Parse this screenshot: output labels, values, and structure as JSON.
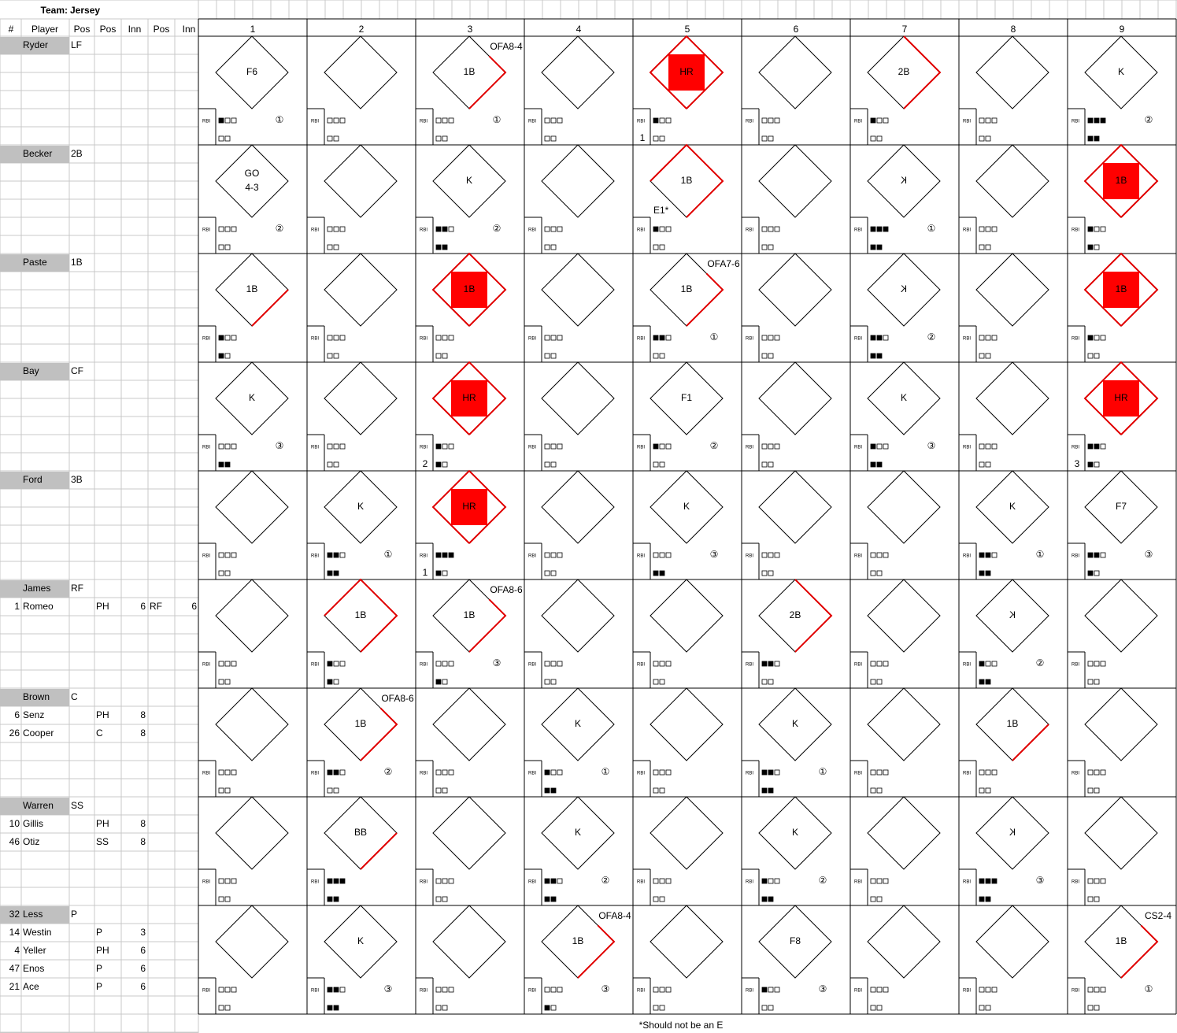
{
  "header": {
    "team_label": "Team:",
    "team": "Jersey"
  },
  "columns": [
    "#",
    "Player",
    "Pos",
    "Pos",
    "Inn",
    "Pos",
    "Inn"
  ],
  "innings": [
    "1",
    "2",
    "3",
    "4",
    "5",
    "6",
    "7",
    "8",
    "9"
  ],
  "rbi_label": "RBI",
  "footnote": "*Should not be an E",
  "rows": [
    {
      "players": [
        {
          "name": "Ryder",
          "pos": "LF"
        }
      ],
      "cells": [
        {
          "result": "F6",
          "balls": 1,
          "strikes": 0,
          "out": "①"
        },
        {
          "balls": 0,
          "strikes": 0
        },
        {
          "result": "1B",
          "edges": 1,
          "thrown_out": true,
          "note": "OFA8-4",
          "balls": 0,
          "strikes": 0,
          "out": "①"
        },
        {
          "balls": 0,
          "strikes": 0
        },
        {
          "result": "HR",
          "edges": 4,
          "scored": true,
          "balls": 1,
          "strikes": 0,
          "rbi": 1
        },
        {
          "balls": 0,
          "strikes": 0
        },
        {
          "result": "2B",
          "edges": 2,
          "balls": 1,
          "strikes": 0
        },
        {
          "balls": 0,
          "strikes": 0
        },
        {
          "result": "K",
          "balls": 3,
          "strikes": 2,
          "out": "②"
        }
      ]
    },
    {
      "players": [
        {
          "name": "Becker",
          "pos": "2B"
        }
      ],
      "cells": [
        {
          "result": [
            "GO",
            "4-3"
          ],
          "balls": 0,
          "strikes": 0,
          "out": "②"
        },
        {
          "balls": 0,
          "strikes": 0
        },
        {
          "result": "K",
          "balls": 2,
          "strikes": 2,
          "out": "②"
        },
        {
          "balls": 0,
          "strikes": 0
        },
        {
          "result": "1B",
          "edges": 3,
          "error": "E1*",
          "balls": 1,
          "strikes": 0
        },
        {
          "balls": 0,
          "strikes": 0
        },
        {
          "result": "K",
          "mirrored": true,
          "balls": 3,
          "strikes": 2,
          "out": "①"
        },
        {
          "balls": 0,
          "strikes": 0
        },
        {
          "result": "1B",
          "edges": 4,
          "scored": true,
          "balls": 1,
          "strikes": 1
        }
      ]
    },
    {
      "players": [
        {
          "name": "Paste",
          "pos": "1B"
        }
      ],
      "cells": [
        {
          "result": "1B",
          "edges": 1,
          "balls": 1,
          "strikes": 1
        },
        {
          "balls": 0,
          "strikes": 0
        },
        {
          "result": "1B",
          "edges": 4,
          "scored": true,
          "balls": 0,
          "strikes": 0
        },
        {
          "balls": 0,
          "strikes": 0
        },
        {
          "result": "1B",
          "edges": 1,
          "thrown_out": true,
          "note": "OFA7-6",
          "balls": 2,
          "strikes": 0,
          "out": "①"
        },
        {
          "balls": 0,
          "strikes": 0
        },
        {
          "result": "K",
          "mirrored": true,
          "balls": 2,
          "strikes": 2,
          "out": "②"
        },
        {
          "balls": 0,
          "strikes": 0
        },
        {
          "result": "1B",
          "edges": 4,
          "scored": true,
          "balls": 1,
          "strikes": 0
        }
      ]
    },
    {
      "players": [
        {
          "name": "Bay",
          "pos": "CF"
        }
      ],
      "cells": [
        {
          "result": "K",
          "balls": 0,
          "strikes": 2,
          "out": "③"
        },
        {
          "balls": 0,
          "strikes": 0
        },
        {
          "result": "HR",
          "edges": 4,
          "scored": true,
          "balls": 1,
          "strikes": 1,
          "rbi": 2
        },
        {
          "balls": 0,
          "strikes": 0
        },
        {
          "result": "F1",
          "balls": 1,
          "strikes": 0,
          "out": "②"
        },
        {
          "balls": 0,
          "strikes": 0
        },
        {
          "result": "K",
          "balls": 1,
          "strikes": 2,
          "out": "③"
        },
        {
          "balls": 0,
          "strikes": 0
        },
        {
          "result": "HR",
          "edges": 4,
          "scored": true,
          "balls": 2,
          "strikes": 1,
          "rbi": 3
        }
      ]
    },
    {
      "players": [
        {
          "name": "Ford",
          "pos": "3B"
        }
      ],
      "cells": [
        {
          "balls": 0,
          "strikes": 0
        },
        {
          "result": "K",
          "balls": 2,
          "strikes": 2,
          "out": "①"
        },
        {
          "result": "HR",
          "edges": 4,
          "scored": true,
          "balls": 3,
          "strikes": 1,
          "rbi": 1
        },
        {
          "balls": 0,
          "strikes": 0
        },
        {
          "result": "K",
          "balls": 0,
          "strikes": 2,
          "out": "③"
        },
        {
          "balls": 0,
          "strikes": 0
        },
        {
          "balls": 0,
          "strikes": 0
        },
        {
          "result": "K",
          "balls": 2,
          "strikes": 2,
          "out": "①"
        },
        {
          "result": "F7",
          "balls": 2,
          "strikes": 1,
          "out": "③"
        }
      ]
    },
    {
      "players": [
        {
          "name": "James",
          "pos": "RF"
        },
        {
          "num": 1,
          "name": "Romeo",
          "pos": "PH",
          "inn": 6,
          "pos2": "RF",
          "inn2": 6
        }
      ],
      "cells": [
        {
          "balls": 0,
          "strikes": 0
        },
        {
          "result": "1B",
          "edges": 3,
          "balls": 1,
          "strikes": 1
        },
        {
          "result": "1B",
          "edges": 1,
          "thrown_out": true,
          "note": "OFA8-6",
          "balls": 0,
          "strikes": 1,
          "out": "③"
        },
        {
          "balls": 0,
          "strikes": 0
        },
        {
          "balls": 0,
          "strikes": 0
        },
        {
          "result": "2B",
          "edges": 2,
          "balls": 2,
          "strikes": 0
        },
        {
          "balls": 0,
          "strikes": 0
        },
        {
          "result": "K",
          "mirrored": true,
          "balls": 1,
          "strikes": 2,
          "out": "②"
        },
        {
          "balls": 0,
          "strikes": 0
        }
      ]
    },
    {
      "players": [
        {
          "name": "Brown",
          "pos": "C"
        },
        {
          "num": 6,
          "name": "Senz",
          "pos": "PH",
          "inn": 8
        },
        {
          "num": 26,
          "name": "Cooper",
          "pos": "C",
          "inn": 8
        }
      ],
      "cells": [
        {
          "balls": 0,
          "strikes": 0
        },
        {
          "result": "1B",
          "edges": 1,
          "thrown_out": true,
          "note": "OFA8-6",
          "balls": 2,
          "strikes": 0,
          "out": "②"
        },
        {
          "balls": 0,
          "strikes": 0
        },
        {
          "result": "K",
          "balls": 1,
          "strikes": 2,
          "out": "①"
        },
        {
          "balls": 0,
          "strikes": 0
        },
        {
          "result": "K",
          "balls": 2,
          "strikes": 2,
          "out": "①"
        },
        {
          "balls": 0,
          "strikes": 0
        },
        {
          "result": "1B",
          "edges": 1,
          "balls": 0,
          "strikes": 0
        },
        {
          "balls": 0,
          "strikes": 0
        }
      ]
    },
    {
      "players": [
        {
          "name": "Warren",
          "pos": "SS"
        },
        {
          "num": 10,
          "name": "Gillis",
          "pos": "PH",
          "inn": 8
        },
        {
          "num": 46,
          "name": "Otiz",
          "pos": "SS",
          "inn": 8
        }
      ],
      "cells": [
        {
          "balls": 0,
          "strikes": 0
        },
        {
          "result": "BB",
          "edges": 1,
          "balls": 3,
          "strikes": 2
        },
        {
          "balls": 0,
          "strikes": 0
        },
        {
          "result": "K",
          "balls": 2,
          "strikes": 2,
          "out": "②"
        },
        {
          "balls": 0,
          "strikes": 0
        },
        {
          "result": "K",
          "balls": 1,
          "strikes": 2,
          "out": "②"
        },
        {
          "balls": 0,
          "strikes": 0
        },
        {
          "result": "K",
          "mirrored": true,
          "balls": 3,
          "strikes": 2,
          "out": "③"
        },
        {
          "balls": 0,
          "strikes": 0
        }
      ]
    },
    {
      "players": [
        {
          "num": 32,
          "name": "Less",
          "pos": "P"
        },
        {
          "num": 14,
          "name": "Westin",
          "pos": "P",
          "inn": 3
        },
        {
          "num": 4,
          "name": "Yeller",
          "pos": "PH",
          "inn": 6
        },
        {
          "num": 47,
          "name": "Enos",
          "pos": "P",
          "inn": 6
        },
        {
          "num": 21,
          "name": "Ace",
          "pos": "P",
          "inn": 6
        }
      ],
      "cells": [
        {
          "balls": 0,
          "strikes": 0
        },
        {
          "result": "K",
          "balls": 2,
          "strikes": 2,
          "out": "③"
        },
        {
          "balls": 0,
          "strikes": 0
        },
        {
          "result": "1B",
          "edges": 1,
          "thrown_out": true,
          "note": "OFA8-4",
          "balls": 0,
          "strikes": 1,
          "out": "③"
        },
        {
          "balls": 0,
          "strikes": 0
        },
        {
          "result": "F8",
          "balls": 1,
          "strikes": 0,
          "out": "③"
        },
        {
          "balls": 0,
          "strikes": 0
        },
        {
          "balls": 0,
          "strikes": 0
        },
        {
          "result": "1B",
          "edges": 1,
          "thrown_out": true,
          "note": "CS2-4",
          "balls": 0,
          "strikes": 0,
          "out": "①"
        }
      ]
    }
  ]
}
